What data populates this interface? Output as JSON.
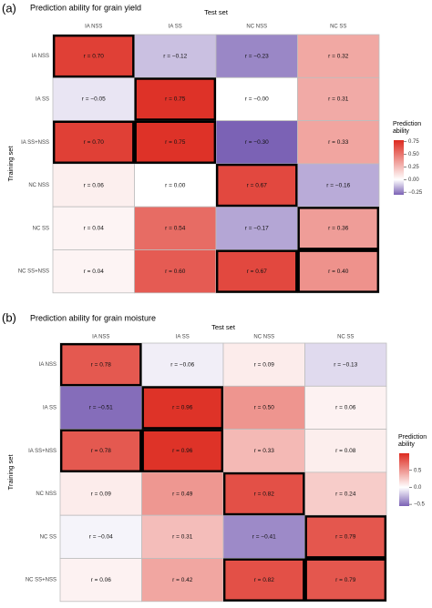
{
  "panels": [
    {
      "letter": "(a)",
      "chart_data": {
        "type": "heatmap",
        "title": "Prediction ability for grain yield",
        "xlabel": "Test set",
        "ylabel": "Training set",
        "x": [
          "IA NSS",
          "IA SS",
          "NC NSS",
          "NC SS"
        ],
        "y": [
          "IA NSS",
          "IA SS",
          "IA SS+NSS",
          "NC NSS",
          "NC SS",
          "NC SS+NSS"
        ],
        "values": [
          [
            0.7,
            -0.12,
            -0.23,
            0.32
          ],
          [
            -0.05,
            0.75,
            -0.0,
            0.31
          ],
          [
            0.7,
            0.75,
            -0.3,
            0.33
          ],
          [
            0.06,
            0.0,
            0.67,
            -0.16
          ],
          [
            0.04,
            0.54,
            -0.17,
            0.36
          ],
          [
            0.04,
            0.6,
            0.67,
            0.4
          ]
        ],
        "cell_labels": [
          [
            "r = 0.70",
            "r = −0.12",
            "r = −0.23",
            "r = 0.32"
          ],
          [
            "r = −0.05",
            "r = 0.75",
            "r = −0.00",
            "r = 0.31"
          ],
          [
            "r = 0.70",
            "r = 0.75",
            "r = −0.30",
            "r = 0.33"
          ],
          [
            "r = 0.06",
            "r = 0.00",
            "r = 0.67",
            "r = −0.16"
          ],
          [
            "r = 0.04",
            "r = 0.54",
            "r = −0.17",
            "r = 0.36"
          ],
          [
            "r = 0.04",
            "r = 0.60",
            "r = 0.67",
            "r = 0.40"
          ]
        ],
        "highlighted_cells": [
          [
            0,
            0
          ],
          [
            1,
            1
          ],
          [
            2,
            0
          ],
          [
            2,
            1
          ],
          [
            3,
            2
          ],
          [
            4,
            3
          ],
          [
            5,
            2
          ],
          [
            5,
            3
          ]
        ],
        "legend": {
          "title_lines": [
            "Prediction",
            "ability"
          ],
          "ticks": [
            "0.75",
            "0.50",
            "0.25",
            "0.00",
            "−0.25"
          ],
          "tick_values": [
            0.75,
            0.5,
            0.25,
            0.0,
            -0.25
          ],
          "range": [
            -0.3,
            0.78
          ]
        },
        "colorscale": {
          "negative": "#7b62b5",
          "zero": "#ffffff",
          "positive": "#dd2a1f"
        }
      }
    },
    {
      "letter": "(b)",
      "chart_data": {
        "type": "heatmap",
        "title": "Prediction ability for grain moisture",
        "xlabel": "Test set",
        "ylabel": "Training set",
        "x": [
          "IA NSS",
          "IA SS",
          "NC NSS",
          "NC SS"
        ],
        "y": [
          "IA NSS",
          "IA SS",
          "IA SS+NSS",
          "NC NSS",
          "NC SS",
          "NC SS+NSS"
        ],
        "values": [
          [
            0.78,
            -0.06,
            0.09,
            -0.13
          ],
          [
            -0.51,
            0.96,
            0.5,
            0.06
          ],
          [
            0.78,
            0.96,
            0.33,
            0.08
          ],
          [
            0.09,
            0.49,
            0.82,
            0.24
          ],
          [
            -0.04,
            0.31,
            -0.41,
            0.79
          ],
          [
            0.06,
            0.42,
            0.82,
            0.79
          ]
        ],
        "cell_labels": [
          [
            "r = 0.78",
            "r = −0.06",
            "r = 0.09",
            "r = −0.13"
          ],
          [
            "r = −0.51",
            "r = 0.96",
            "r = 0.50",
            "r = 0.06"
          ],
          [
            "r = 0.78",
            "r = 0.96",
            "r = 0.33",
            "r = 0.08"
          ],
          [
            "r = 0.09",
            "r = 0.49",
            "r = 0.82",
            "r = 0.24"
          ],
          [
            "r = −0.04",
            "r = 0.31",
            "r = −0.41",
            "r = 0.79"
          ],
          [
            "r = 0.06",
            "r = 0.42",
            "r = 0.82",
            "r = 0.79"
          ]
        ],
        "highlighted_cells": [
          [
            0,
            0
          ],
          [
            1,
            1
          ],
          [
            2,
            0
          ],
          [
            2,
            1
          ],
          [
            3,
            2
          ],
          [
            4,
            3
          ],
          [
            5,
            2
          ],
          [
            5,
            3
          ]
        ],
        "legend": {
          "title_lines": [
            "Prediction",
            "ability"
          ],
          "ticks": [
            "0.5",
            "0.0",
            "−0.5"
          ],
          "tick_values": [
            0.5,
            0.0,
            -0.5
          ],
          "range": [
            -0.55,
            1.0
          ]
        },
        "colorscale": {
          "negative": "#7b62b5",
          "zero": "#ffffff",
          "positive": "#dd2a1f"
        }
      }
    }
  ]
}
